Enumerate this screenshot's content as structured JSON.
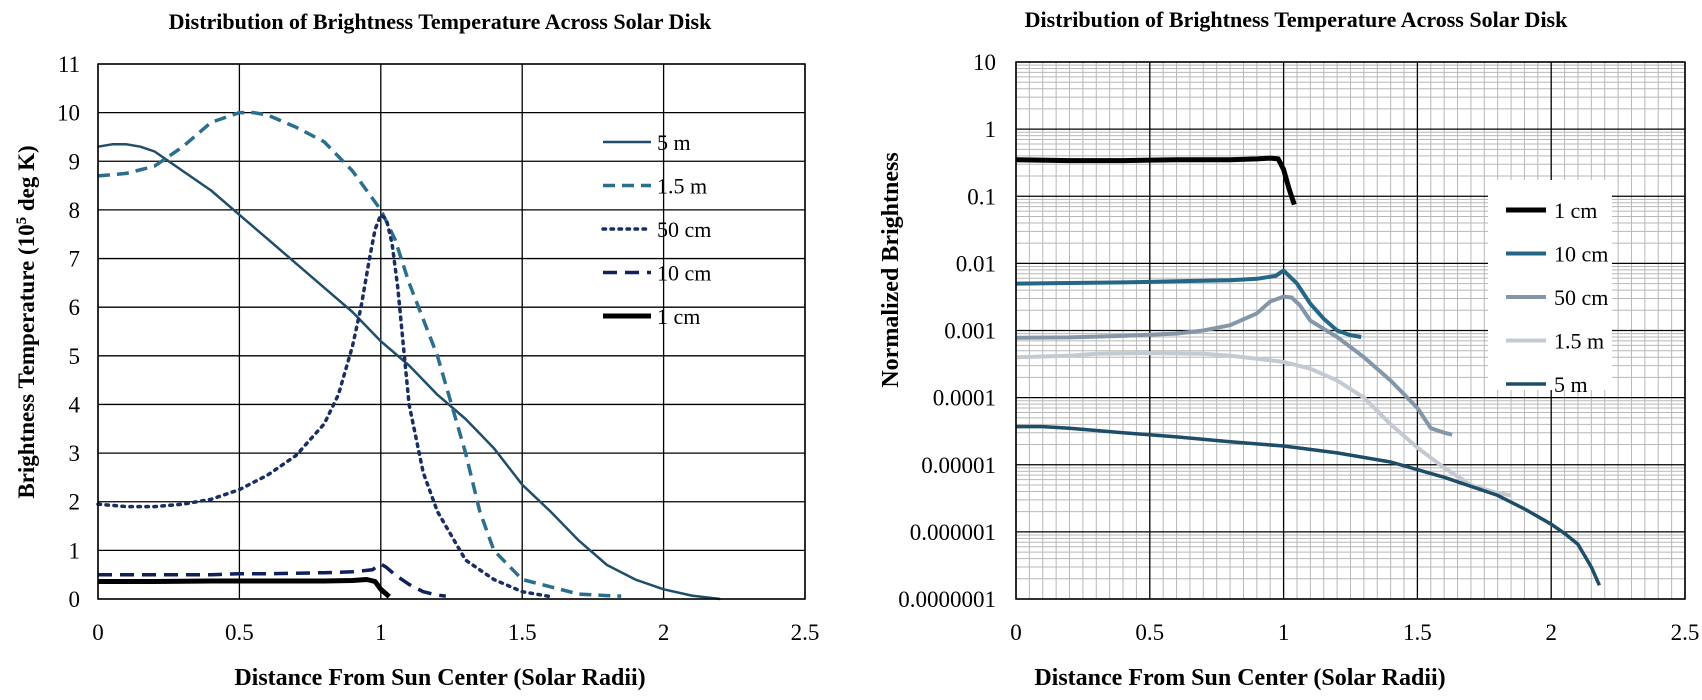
{
  "chart_data": [
    {
      "type": "line",
      "title": "Distribution of Brightness Temperature Across Solar Disk",
      "xlabel": "Distance From Sun Center (Solar Radii)",
      "ylabel": "Brightness Temperature (10",
      "ylabel_sup": "5",
      "ylabel_tail": " deg K)",
      "xlim": [
        0,
        2.5
      ],
      "ylim": [
        0,
        11
      ],
      "yscale": "linear",
      "xticks": [
        0,
        0.5,
        1,
        1.5,
        2,
        2.5
      ],
      "xtick_labels": [
        "0",
        "0.5",
        "1",
        "1.5",
        "2",
        "2.5"
      ],
      "yticks": [
        0,
        1,
        2,
        3,
        4,
        5,
        6,
        7,
        8,
        9,
        10,
        11
      ],
      "ytick_labels": [
        "0",
        "1",
        "2",
        "3",
        "4",
        "5",
        "6",
        "7",
        "8",
        "9",
        "10",
        "11"
      ],
      "grid": "major",
      "legend": "upper-right",
      "series": [
        {
          "name": "5 m",
          "color": "#1f4e6b",
          "style": "solid",
          "width": 2.5,
          "x": [
            0,
            0.05,
            0.1,
            0.15,
            0.2,
            0.3,
            0.4,
            0.5,
            0.6,
            0.7,
            0.8,
            0.9,
            1.0,
            1.1,
            1.2,
            1.3,
            1.35,
            1.4,
            1.5,
            1.6,
            1.7,
            1.8,
            1.9,
            2.0,
            2.1,
            2.2
          ],
          "y": [
            9.3,
            9.35,
            9.35,
            9.3,
            9.2,
            8.8,
            8.4,
            7.9,
            7.4,
            6.9,
            6.4,
            5.9,
            5.3,
            4.8,
            4.2,
            3.7,
            3.4,
            3.1,
            2.35,
            1.8,
            1.2,
            0.7,
            0.4,
            0.2,
            0.07,
            0.0
          ]
        },
        {
          "name": "1.5 m",
          "color": "#2c6e8e",
          "style": "dash",
          "width": 3.5,
          "x": [
            0,
            0.1,
            0.2,
            0.3,
            0.4,
            0.5,
            0.55,
            0.6,
            0.7,
            0.8,
            0.9,
            1.0,
            1.05,
            1.1,
            1.2,
            1.3,
            1.35,
            1.4,
            1.5,
            1.6,
            1.7,
            1.8,
            1.85
          ],
          "y": [
            8.7,
            8.75,
            8.9,
            9.3,
            9.8,
            10.0,
            10.0,
            9.95,
            9.7,
            9.4,
            8.8,
            8.0,
            7.4,
            6.5,
            5.0,
            3.0,
            1.8,
            1.0,
            0.4,
            0.25,
            0.1,
            0.07,
            0.06
          ]
        },
        {
          "name": "50 cm",
          "color": "#1a2e63",
          "style": "dot",
          "width": 3.5,
          "x": [
            0,
            0.1,
            0.2,
            0.3,
            0.4,
            0.5,
            0.6,
            0.7,
            0.8,
            0.85,
            0.9,
            0.93,
            0.96,
            0.98,
            1.0,
            1.02,
            1.04,
            1.06,
            1.08,
            1.1,
            1.15,
            1.2,
            1.3,
            1.4,
            1.5,
            1.6
          ],
          "y": [
            1.95,
            1.9,
            1.9,
            1.95,
            2.05,
            2.25,
            2.55,
            2.95,
            3.6,
            4.2,
            5.2,
            6.0,
            7.0,
            7.6,
            7.9,
            7.8,
            7.3,
            6.4,
            5.2,
            4.0,
            2.6,
            1.8,
            0.8,
            0.4,
            0.15,
            0.05
          ]
        },
        {
          "name": "10 cm",
          "color": "#10205a",
          "style": "longdash",
          "width": 3.5,
          "x": [
            0,
            0.1,
            0.2,
            0.3,
            0.4,
            0.5,
            0.6,
            0.7,
            0.8,
            0.9,
            0.97,
            1.0,
            1.02,
            1.05,
            1.1,
            1.15,
            1.2,
            1.23
          ],
          "y": [
            0.5,
            0.5,
            0.5,
            0.5,
            0.5,
            0.52,
            0.52,
            0.53,
            0.54,
            0.56,
            0.6,
            0.72,
            0.65,
            0.5,
            0.3,
            0.15,
            0.08,
            0.06
          ]
        },
        {
          "name": "1 cm",
          "color": "#000000",
          "style": "solid",
          "width": 5,
          "x": [
            0,
            0.2,
            0.4,
            0.6,
            0.8,
            0.9,
            0.95,
            0.98,
            1.0,
            1.03
          ],
          "y": [
            0.36,
            0.36,
            0.37,
            0.37,
            0.37,
            0.38,
            0.4,
            0.36,
            0.2,
            0.05
          ]
        }
      ]
    },
    {
      "type": "line",
      "title": "Distribution of Brightness Temperature Across Solar Disk",
      "xlabel": "Distance From Sun Center (Solar Radii)",
      "ylabel": "Normalized Brightness",
      "xlim": [
        0,
        2.5
      ],
      "ylim": [
        1e-07,
        10
      ],
      "yscale": "log",
      "xticks": [
        0,
        0.5,
        1,
        1.5,
        2,
        2.5
      ],
      "xtick_labels": [
        "0",
        "0.5",
        "1",
        "1.5",
        "2",
        "2.5"
      ],
      "yticks": [
        1e-07,
        1e-06,
        1e-05,
        0.0001,
        0.001,
        0.01,
        0.1,
        1,
        10
      ],
      "ytick_labels": [
        "0.0000001",
        "0.000001",
        "0.00001",
        "0.0001",
        "0.001",
        "0.01",
        "0.1",
        "1",
        "10"
      ],
      "grid": "major+minor",
      "legend": "right",
      "series": [
        {
          "name": "1 cm",
          "color": "#000000",
          "style": "solid",
          "width": 5,
          "x": [
            0,
            0.2,
            0.4,
            0.6,
            0.8,
            0.9,
            0.95,
            0.98,
            1.0,
            1.02,
            1.04
          ],
          "y": [
            0.35,
            0.34,
            0.34,
            0.35,
            0.35,
            0.36,
            0.37,
            0.36,
            0.25,
            0.13,
            0.075
          ]
        },
        {
          "name": "10 cm",
          "color": "#236685",
          "style": "solid",
          "width": 4,
          "x": [
            0,
            0.2,
            0.4,
            0.6,
            0.8,
            0.9,
            0.97,
            1.0,
            1.05,
            1.1,
            1.15,
            1.2,
            1.25,
            1.29
          ],
          "y": [
            0.005,
            0.0051,
            0.0052,
            0.0054,
            0.0056,
            0.0059,
            0.0065,
            0.0078,
            0.005,
            0.0025,
            0.0015,
            0.001,
            0.00085,
            0.0008
          ]
        },
        {
          "name": "50 cm",
          "color": "#8497a8",
          "style": "solid",
          "width": 4,
          "x": [
            0,
            0.2,
            0.4,
            0.6,
            0.7,
            0.8,
            0.9,
            0.95,
            1.0,
            1.03,
            1.06,
            1.1,
            1.2,
            1.3,
            1.4,
            1.5,
            1.55,
            1.6,
            1.63
          ],
          "y": [
            0.00078,
            0.00079,
            0.00083,
            0.0009,
            0.001,
            0.0012,
            0.0018,
            0.0027,
            0.0032,
            0.0031,
            0.0024,
            0.0014,
            0.0008,
            0.0004,
            0.00018,
            7e-05,
            3.5e-05,
            3e-05,
            2.8e-05
          ]
        },
        {
          "name": "1.5 m",
          "color": "#c3cad2",
          "style": "solid",
          "width": 4,
          "x": [
            0,
            0.2,
            0.3,
            0.5,
            0.7,
            0.8,
            0.9,
            1.0,
            1.1,
            1.2,
            1.3,
            1.4,
            1.5,
            1.6,
            1.7,
            1.8,
            1.85
          ],
          "y": [
            0.0004,
            0.00042,
            0.00045,
            0.00046,
            0.00045,
            0.00042,
            0.00038,
            0.00034,
            0.00027,
            0.00018,
            0.0001,
            4e-05,
            1.8e-05,
            9e-06,
            5e-06,
            3.8e-06,
            3.5e-06
          ]
        },
        {
          "name": "5 m",
          "color": "#1e4d68",
          "style": "solid",
          "width": 3.5,
          "x": [
            0,
            0.1,
            0.2,
            0.4,
            0.6,
            0.8,
            1.0,
            1.2,
            1.4,
            1.6,
            1.8,
            1.9,
            2.0,
            2.05,
            2.1,
            2.15,
            2.18
          ],
          "y": [
            3.7e-05,
            3.7e-05,
            3.5e-05,
            3e-05,
            2.6e-05,
            2.2e-05,
            1.9e-05,
            1.5e-05,
            1.1e-05,
            6.5e-06,
            3.5e-06,
            2.2e-06,
            1.3e-06,
            9.5e-07,
            6.5e-07,
            3e-07,
            1.6e-07
          ]
        }
      ]
    }
  ]
}
